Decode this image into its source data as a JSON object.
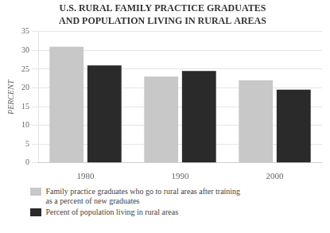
{
  "chart_data": {
    "type": "bar",
    "title": "U.S. RURAL FAMILY PRACTICE GRADUATES",
    "subtitle": "AND POPULATION LIVING IN RURAL AREAS",
    "categories": [
      "1980",
      "1990",
      "2000"
    ],
    "series": [
      {
        "name": "Family practice graduates who go to rural areas after training\nas a percent of new graduates",
        "color": "#c8c8c8",
        "values": [
          31,
          23,
          22
        ]
      },
      {
        "name": "Percent of population living in rural areas",
        "color": "#2a2a2a",
        "values": [
          26,
          24.5,
          19.5
        ]
      }
    ],
    "ylabel": "PERCENT",
    "ylim": [
      0,
      35
    ],
    "yticks": [
      0,
      5,
      10,
      15,
      20,
      25,
      30,
      35
    ],
    "grid": true,
    "legend": "bottom"
  }
}
